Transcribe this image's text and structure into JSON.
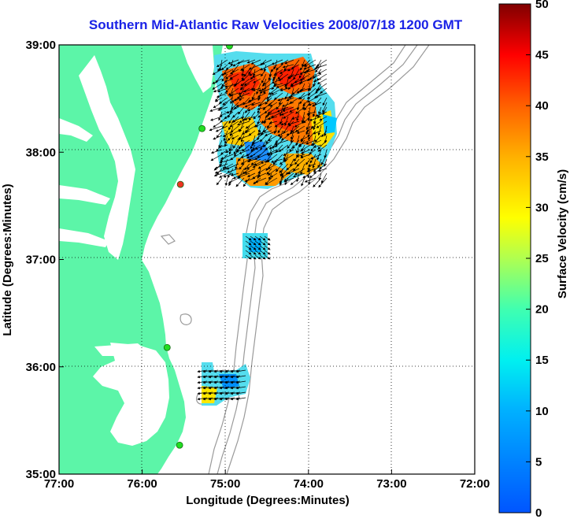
{
  "title": "Southern Mid-Atlantic Raw Velocities 2008/07/18 1200 GMT",
  "axes": {
    "xlabel": "Longitude (Degrees:Minutes)",
    "ylabel": "Latitude (Degrees:Minutes)",
    "x_ticks": [
      "77:00",
      "76:00",
      "75:00",
      "74:00",
      "73:00",
      "72:00"
    ],
    "y_ticks": [
      "39:00",
      "38:00",
      "37:00",
      "36:00",
      "35:00"
    ],
    "lon_range": [
      -77,
      -72
    ],
    "lat_range": [
      35,
      39
    ]
  },
  "colorbar": {
    "label": "Surface Velocity (cm/s)",
    "ticks": [
      "0",
      "5",
      "10",
      "15",
      "20",
      "25",
      "30",
      "35",
      "40",
      "45",
      "50"
    ],
    "range": [
      0,
      50
    ]
  },
  "colors": {
    "land": "#5cf5a8",
    "water": "#ffffff",
    "title": "#1a22e6",
    "contour": "#9a9a9a",
    "station_active": "#22dd22",
    "station_inactive": "#ee3322"
  },
  "stations": [
    {
      "status": "active",
      "lon": -74.95,
      "lat": 38.99
    },
    {
      "status": "active",
      "lon": -75.28,
      "lat": 38.22
    },
    {
      "status": "inactive",
      "lon": -75.54,
      "lat": 37.7
    },
    {
      "status": "active",
      "lon": -75.7,
      "lat": 36.18
    },
    {
      "status": "active",
      "lon": -75.55,
      "lat": 35.27
    }
  ]
}
